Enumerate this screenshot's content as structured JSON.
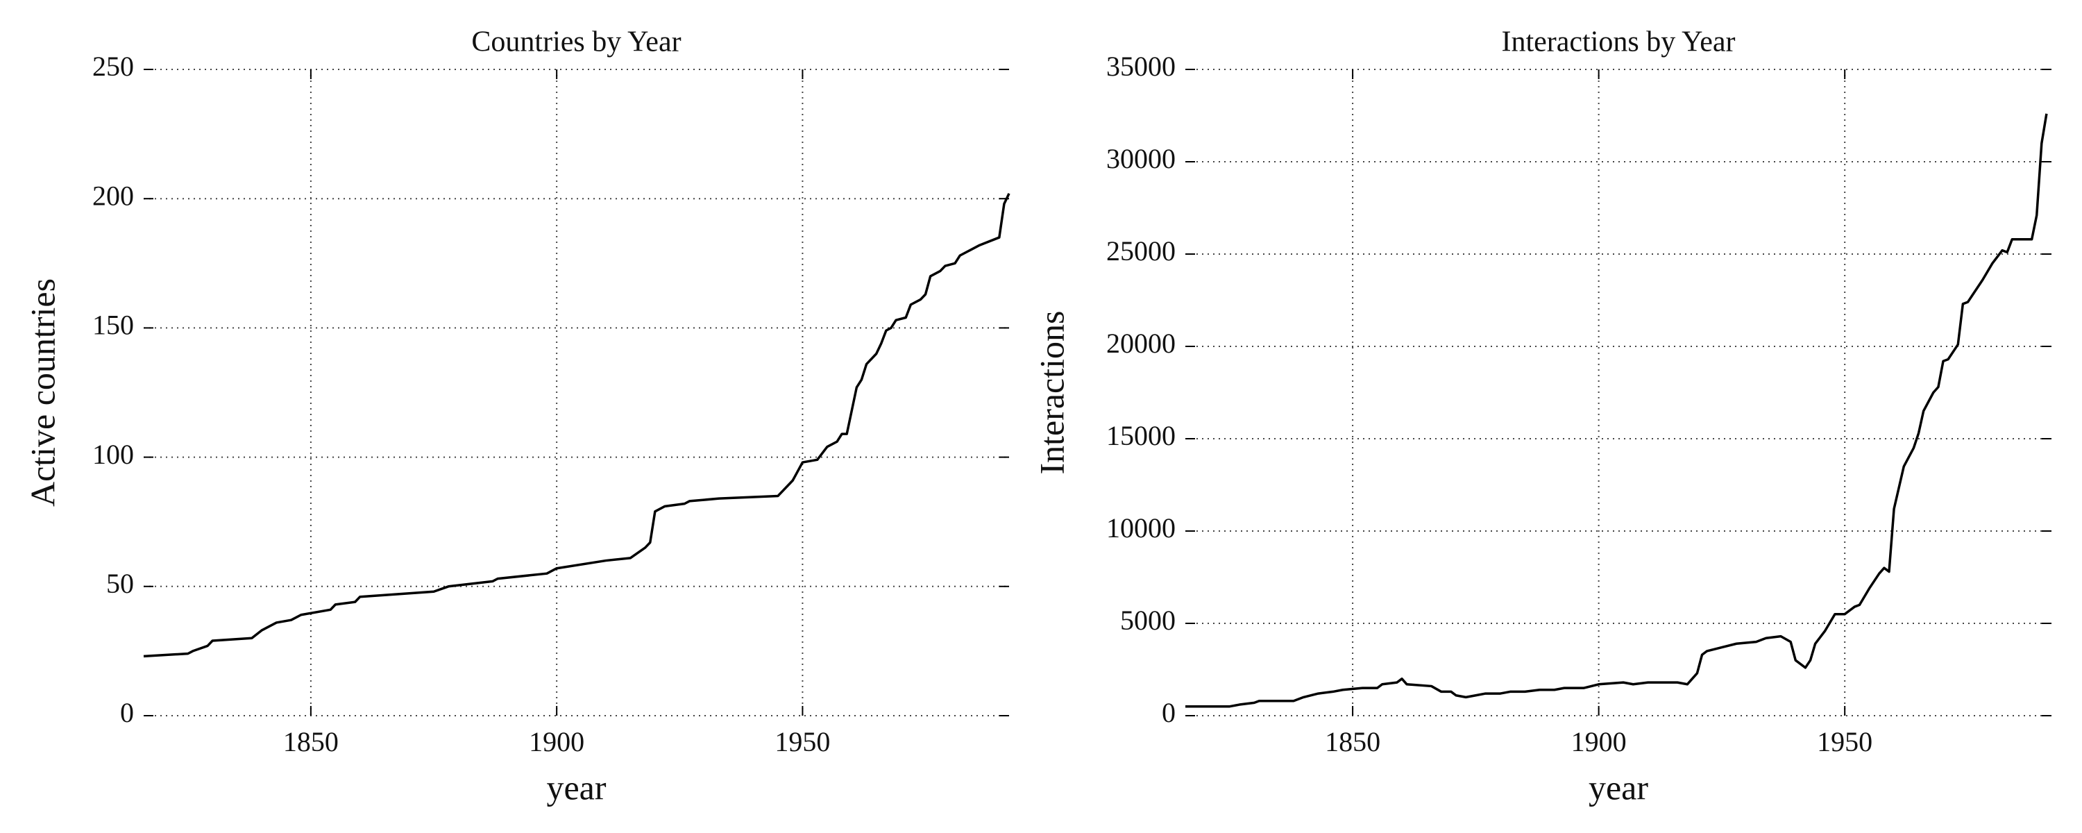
{
  "chart_data": [
    {
      "type": "line",
      "title": "Countries by Year",
      "xlabel": "year",
      "ylabel": "Active countries",
      "x": [
        1816,
        1825,
        1826,
        1829,
        1830,
        1838,
        1840,
        1843,
        1846,
        1848,
        1854,
        1855,
        1859,
        1860,
        1875,
        1878,
        1887,
        1888,
        1898,
        1900,
        1910,
        1915,
        1918,
        1919,
        1920,
        1922,
        1926,
        1927,
        1933,
        1945,
        1948,
        1950,
        1953,
        1955,
        1957,
        1958,
        1959,
        1961,
        1962,
        1963,
        1965,
        1966,
        1967,
        1968,
        1969,
        1971,
        1972,
        1974,
        1975,
        1976,
        1978,
        1979,
        1981,
        1982,
        1984,
        1986,
        1990,
        1991,
        1992
      ],
      "values": [
        23,
        24,
        25,
        27,
        29,
        30,
        33,
        36,
        37,
        39,
        41,
        43,
        44,
        46,
        48,
        50,
        52,
        53,
        55,
        57,
        60,
        61,
        65,
        67,
        79,
        81,
        82,
        83,
        84,
        85,
        91,
        98,
        99,
        104,
        106,
        109,
        109,
        127,
        130,
        136,
        140,
        144,
        149,
        150,
        153,
        154,
        159,
        161,
        163,
        170,
        172,
        174,
        175,
        178,
        180,
        182,
        185,
        198,
        202
      ],
      "color": "#000000",
      "xlim": [
        1816,
        1992
      ],
      "ylim": [
        0,
        250
      ],
      "xticks": [
        1850,
        1900,
        1950
      ],
      "yticks": [
        0,
        50,
        100,
        150,
        200,
        250
      ],
      "grid": true
    },
    {
      "type": "line",
      "title": "Interactions by Year",
      "xlabel": "year",
      "ylabel": "Interactions",
      "x": [
        1816,
        1825,
        1827,
        1830,
        1831,
        1838,
        1840,
        1843,
        1846,
        1848,
        1852,
        1855,
        1856,
        1859,
        1860,
        1861,
        1866,
        1868,
        1870,
        1871,
        1873,
        1875,
        1877,
        1880,
        1882,
        1885,
        1888,
        1891,
        1893,
        1897,
        1900,
        1905,
        1907,
        1910,
        1913,
        1916,
        1918,
        1920,
        1921,
        1922,
        1925,
        1928,
        1932,
        1934,
        1937,
        1939,
        1940,
        1942,
        1943,
        1944,
        1946,
        1948,
        1950,
        1952,
        1953,
        1955,
        1957,
        1958,
        1959,
        1960,
        1962,
        1964,
        1965,
        1966,
        1968,
        1969,
        1970,
        1971,
        1973,
        1974,
        1975,
        1976,
        1978,
        1980,
        1982,
        1983,
        1984,
        1986,
        1988,
        1989,
        1990,
        1991
      ],
      "values": [
        500,
        500,
        600,
        700,
        800,
        800,
        1000,
        1200,
        1300,
        1400,
        1500,
        1500,
        1700,
        1800,
        2000,
        1700,
        1600,
        1300,
        1300,
        1100,
        1000,
        1100,
        1200,
        1200,
        1300,
        1300,
        1400,
        1400,
        1500,
        1500,
        1700,
        1800,
        1700,
        1800,
        1800,
        1800,
        1700,
        2300,
        3300,
        3500,
        3700,
        3900,
        4000,
        4200,
        4300,
        4000,
        3000,
        2600,
        3000,
        3900,
        4600,
        5500,
        5500,
        5900,
        6000,
        6900,
        7700,
        8000,
        7800,
        11200,
        13500,
        14500,
        15300,
        16500,
        17500,
        17800,
        19200,
        19300,
        20100,
        22300,
        22400,
        22800,
        23600,
        24500,
        25200,
        25100,
        25800,
        25800,
        25800,
        27100,
        31000,
        32600
      ],
      "color": "#000000",
      "xlim": [
        1816,
        1992
      ],
      "ylim": [
        0,
        35000
      ],
      "xticks": [
        1850,
        1900,
        1950
      ],
      "yticks": [
        0,
        5000,
        10000,
        15000,
        20000,
        25000,
        30000,
        35000
      ],
      "grid": true
    }
  ]
}
